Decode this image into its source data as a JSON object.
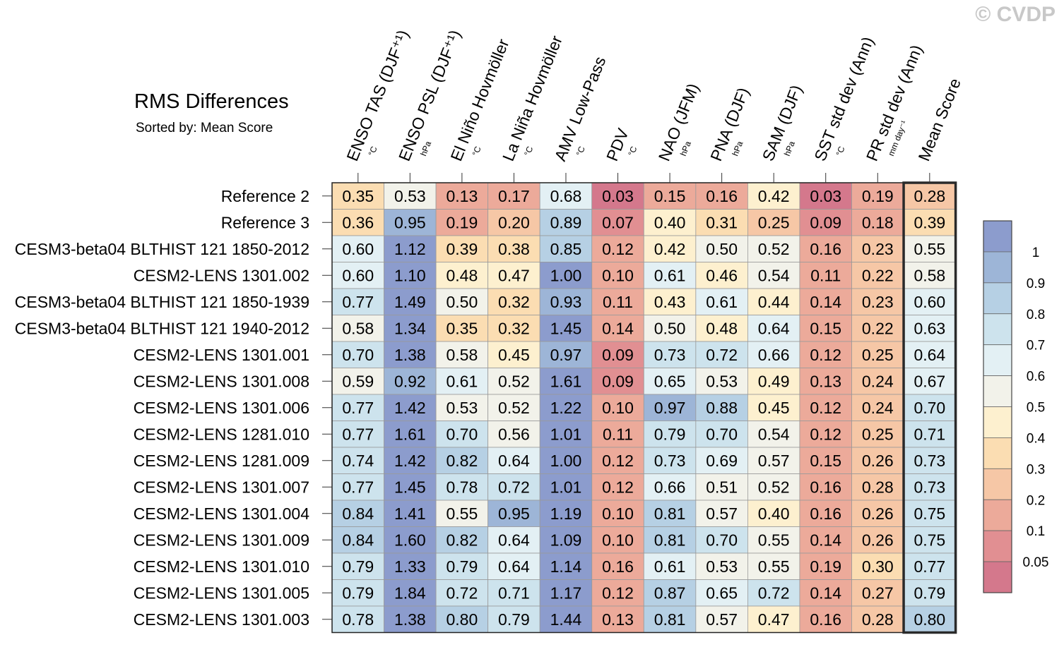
{
  "title": "RMS Differences",
  "subtitle": "Sorted by: Mean Score",
  "watermark": "© CVDP",
  "colors": {
    "scale_stops": [
      "#d4788c",
      "#e18f92",
      "#ecaa9a",
      "#f6c7a6",
      "#fbddb2",
      "#fdf0cf",
      "#f2f2ea",
      "#e3f0f4",
      "#cde3ed",
      "#b6d0e4",
      "#9db5d7",
      "#8c9ccd"
    ],
    "grid_line": "#9a9a9a",
    "frame": "#222222"
  },
  "chart_data": {
    "type": "heatmap",
    "title": "RMS Differences",
    "subtitle": "Sorted by: Mean Score",
    "columns": [
      {
        "label": "ENSO TAS (DJF⁺¹)",
        "unit": "°C"
      },
      {
        "label": "ENSO PSL (DJF⁺¹)",
        "unit": "hPa"
      },
      {
        "label": "El Niño Hovmöller",
        "unit": "°C"
      },
      {
        "label": "La Niña Hovmöller",
        "unit": "°C"
      },
      {
        "label": "AMV Low-Pass",
        "unit": "°C"
      },
      {
        "label": "PDV",
        "unit": "°C"
      },
      {
        "label": "NAO (JFM)",
        "unit": "hPa"
      },
      {
        "label": "PNA (DJF)",
        "unit": "hPa"
      },
      {
        "label": "SAM (DJF)",
        "unit": "hPa"
      },
      {
        "label": "SST std dev (Ann)",
        "unit": "°C"
      },
      {
        "label": "PR std dev (Ann)",
        "unit": "mm day⁻¹"
      },
      {
        "label": "Mean Score",
        "unit": ""
      }
    ],
    "rows": [
      "Reference 2",
      "Reference 3",
      "CESM3-beta04 BLTHIST 121 1850-2012",
      "CESM2-LENS 1301.002",
      "CESM3-beta04 BLTHIST 121 1850-1939",
      "CESM3-beta04 BLTHIST 121 1940-2012",
      "CESM2-LENS 1301.001",
      "CESM2-LENS 1301.008",
      "CESM2-LENS 1301.006",
      "CESM2-LENS 1281.010",
      "CESM2-LENS 1281.009",
      "CESM2-LENS 1301.007",
      "CESM2-LENS 1301.004",
      "CESM2-LENS 1301.009",
      "CESM2-LENS 1301.010",
      "CESM2-LENS 1301.005",
      "CESM2-LENS 1301.003"
    ],
    "values": [
      [
        0.35,
        0.53,
        0.13,
        0.17,
        0.68,
        0.03,
        0.15,
        0.16,
        0.42,
        0.03,
        0.19,
        0.28
      ],
      [
        0.36,
        0.95,
        0.19,
        0.2,
        0.89,
        0.07,
        0.4,
        0.31,
        0.25,
        0.09,
        0.18,
        0.39
      ],
      [
        0.6,
        1.12,
        0.39,
        0.38,
        0.85,
        0.12,
        0.42,
        0.5,
        0.52,
        0.16,
        0.23,
        0.55
      ],
      [
        0.6,
        1.1,
        0.48,
        0.47,
        1.0,
        0.1,
        0.61,
        0.46,
        0.54,
        0.11,
        0.22,
        0.58
      ],
      [
        0.77,
        1.49,
        0.5,
        0.32,
        0.93,
        0.11,
        0.43,
        0.61,
        0.44,
        0.14,
        0.23,
        0.6
      ],
      [
        0.58,
        1.34,
        0.35,
        0.32,
        1.45,
        0.14,
        0.5,
        0.48,
        0.64,
        0.15,
        0.22,
        0.63
      ],
      [
        0.7,
        1.38,
        0.58,
        0.45,
        0.97,
        0.09,
        0.73,
        0.72,
        0.66,
        0.12,
        0.25,
        0.64
      ],
      [
        0.59,
        0.92,
        0.61,
        0.52,
        1.61,
        0.09,
        0.65,
        0.53,
        0.49,
        0.13,
        0.24,
        0.67
      ],
      [
        0.77,
        1.42,
        0.53,
        0.52,
        1.22,
        0.1,
        0.97,
        0.88,
        0.45,
        0.12,
        0.24,
        0.7
      ],
      [
        0.77,
        1.61,
        0.7,
        0.56,
        1.01,
        0.11,
        0.79,
        0.7,
        0.54,
        0.12,
        0.25,
        0.71
      ],
      [
        0.74,
        1.42,
        0.82,
        0.64,
        1.0,
        0.12,
        0.73,
        0.69,
        0.57,
        0.15,
        0.26,
        0.73
      ],
      [
        0.77,
        1.45,
        0.78,
        0.72,
        1.01,
        0.12,
        0.66,
        0.51,
        0.52,
        0.16,
        0.28,
        0.73
      ],
      [
        0.84,
        1.41,
        0.55,
        0.95,
        1.19,
        0.1,
        0.81,
        0.57,
        0.4,
        0.16,
        0.26,
        0.75
      ],
      [
        0.84,
        1.6,
        0.82,
        0.64,
        1.09,
        0.1,
        0.81,
        0.7,
        0.55,
        0.14,
        0.26,
        0.75
      ],
      [
        0.79,
        1.33,
        0.79,
        0.64,
        1.14,
        0.16,
        0.61,
        0.53,
        0.55,
        0.19,
        0.3,
        0.77
      ],
      [
        0.79,
        1.84,
        0.72,
        0.71,
        1.17,
        0.12,
        0.87,
        0.65,
        0.72,
        0.14,
        0.27,
        0.79
      ],
      [
        0.78,
        1.38,
        0.8,
        0.79,
        1.44,
        0.13,
        0.81,
        0.57,
        0.47,
        0.16,
        0.28,
        0.8
      ]
    ],
    "colorbar": {
      "levels": [
        0.05,
        0.1,
        0.2,
        0.3,
        0.4,
        0.5,
        0.6,
        0.7,
        0.8,
        0.9,
        1
      ],
      "labels": [
        "0.05",
        "0.1",
        "0.2",
        "0.3",
        "0.4",
        "0.5",
        "0.6",
        "0.7",
        "0.8",
        "0.9",
        "1"
      ]
    },
    "highlighted_column": "Mean Score"
  }
}
